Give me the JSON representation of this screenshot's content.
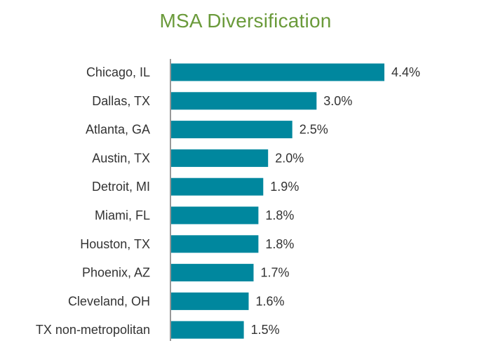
{
  "chart_data": {
    "type": "bar",
    "orientation": "horizontal",
    "title": "MSA Diversification",
    "categories": [
      "Chicago, IL",
      "Dallas, TX",
      "Atlanta, GA",
      "Austin, TX",
      "Detroit, MI",
      "Miami, FL",
      "Houston, TX",
      "Phoenix, AZ",
      "Cleveland, OH",
      "TX non-metropolitan"
    ],
    "values": [
      4.4,
      3.0,
      2.5,
      2.0,
      1.9,
      1.8,
      1.8,
      1.7,
      1.6,
      1.5
    ],
    "value_labels": [
      "4.4%",
      "3.0%",
      "2.5%",
      "2.0%",
      "1.9%",
      "1.8%",
      "1.8%",
      "1.7%",
      "1.6%",
      "1.5%"
    ],
    "xlim": [
      0,
      4.4
    ],
    "grid": false,
    "legend": "none",
    "colors": {
      "bar": "#00879e",
      "title": "#6a9a3a",
      "axis": "#777777",
      "text": "#333333"
    }
  }
}
